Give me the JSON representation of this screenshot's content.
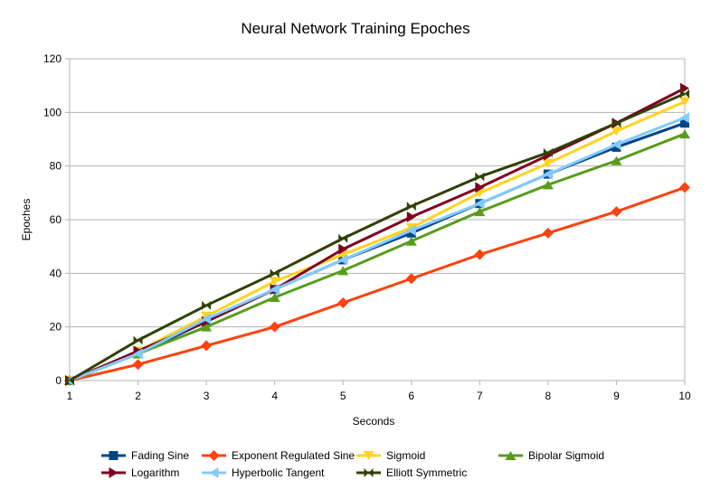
{
  "chart_data": {
    "type": "line",
    "title": "Neural Network Training Epoches",
    "xlabel": "Seconds",
    "ylabel": "Epoches",
    "x": [
      1,
      2,
      3,
      4,
      5,
      6,
      7,
      8,
      9,
      10
    ],
    "xlim": [
      1,
      10
    ],
    "ylim": [
      0,
      120
    ],
    "yticks": [
      0,
      20,
      40,
      60,
      80,
      100,
      120
    ],
    "grid": "horizontal",
    "legend_position": "bottom",
    "series": [
      {
        "name": "Fading Sine",
        "color": "#004586",
        "marker": "square",
        "values": [
          0,
          10,
          22,
          34,
          45,
          55,
          66,
          77,
          87,
          96
        ]
      },
      {
        "name": "Exponent Regulated Sine",
        "color": "#ff420e",
        "marker": "diamond",
        "values": [
          0,
          6,
          13,
          20,
          29,
          38,
          47,
          55,
          63,
          72
        ]
      },
      {
        "name": "Sigmoid",
        "color": "#ffd320",
        "marker": "triangle-down",
        "values": [
          0,
          11,
          24,
          37,
          47,
          57,
          70,
          81,
          93,
          104
        ]
      },
      {
        "name": "Bipolar Sigmoid",
        "color": "#579d1c",
        "marker": "triangle-up",
        "values": [
          0,
          10,
          20,
          31,
          41,
          52,
          63,
          73,
          82,
          92
        ]
      },
      {
        "name": "Logarithm",
        "color": "#7e0021",
        "marker": "triangle-right",
        "values": [
          0,
          11,
          22,
          34,
          49,
          61,
          72,
          84,
          96,
          109
        ]
      },
      {
        "name": "Hyperbolic Tangent",
        "color": "#83caff",
        "marker": "triangle-left",
        "values": [
          0,
          10,
          23,
          34,
          45,
          56,
          66,
          77,
          88,
          98
        ]
      },
      {
        "name": "Elliott Symmetric",
        "color": "#314004",
        "marker": "bowtie",
        "values": [
          0,
          15,
          28,
          40,
          53,
          65,
          76,
          85,
          96,
          107
        ]
      }
    ]
  }
}
